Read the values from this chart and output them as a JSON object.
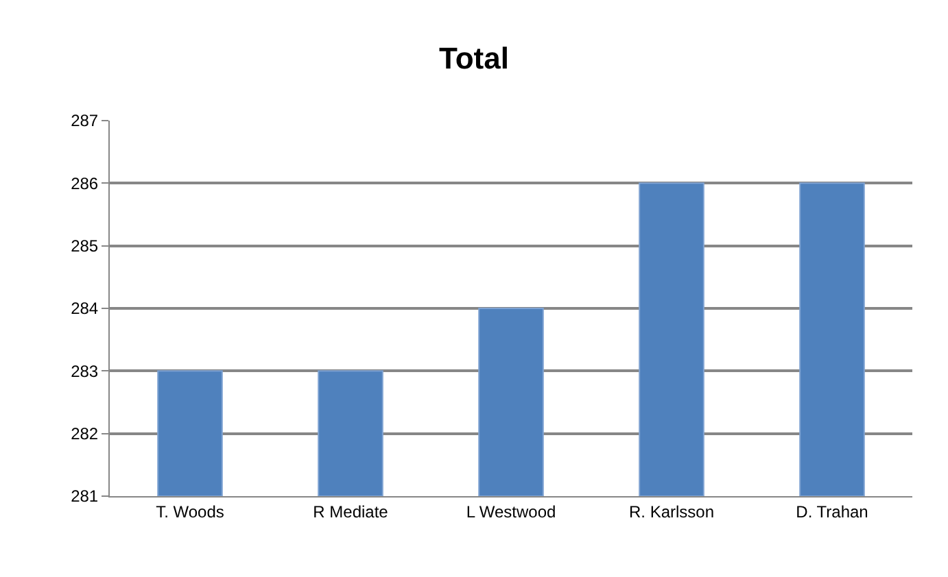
{
  "chart_data": {
    "type": "bar",
    "title": "Total",
    "categories": [
      "T. Woods",
      "R Mediate",
      "L Westwood",
      "R. Karlsson",
      "D. Trahan"
    ],
    "values": [
      283,
      283,
      284,
      286,
      286
    ],
    "color": "#4f81bd",
    "ylim": [
      281,
      287
    ],
    "yticks": [
      281,
      282,
      283,
      284,
      285,
      286,
      287
    ],
    "grid": "y",
    "legend": false
  }
}
